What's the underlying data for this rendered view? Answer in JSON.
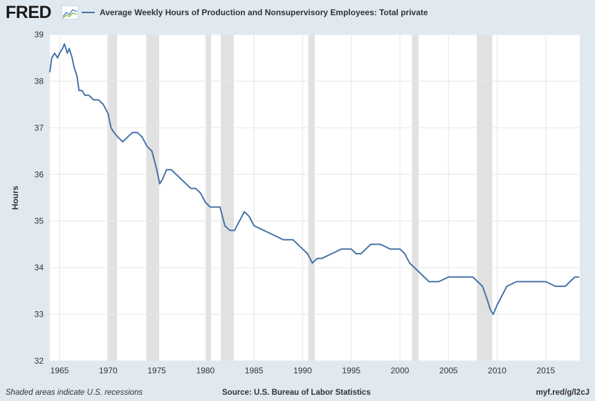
{
  "header": {
    "logo_text": "FRED",
    "logo_icon": "fred-chart-icon",
    "legend_label": "Average Weekly Hours of Production and Nonsupervisory Employees: Total private"
  },
  "footer": {
    "recession_note": "Shaded areas indicate U.S. recessions",
    "source": "Source: U.S. Bureau of Labor Statistics",
    "link": "myf.red/g/l2cJ"
  },
  "colors": {
    "page_background": "#e1e9f0",
    "plot_background": "#ffffff",
    "series": "#4572a7",
    "recession": "#e1e1e1",
    "grid": "#e6e6e6"
  },
  "chart_data": {
    "type": "line",
    "title": "",
    "xlabel": "",
    "ylabel": "Hours",
    "xlim": [
      1964.0,
      2018.5
    ],
    "ylim": [
      32,
      39
    ],
    "x_ticks": [
      1965,
      1970,
      1975,
      1980,
      1985,
      1990,
      1995,
      2000,
      2005,
      2010,
      2015
    ],
    "y_ticks": [
      32,
      33,
      34,
      35,
      36,
      37,
      38,
      39
    ],
    "grid": true,
    "recessions": [
      [
        1969.92,
        1970.92
      ],
      [
        1973.92,
        1975.25
      ],
      [
        1980.08,
        1980.58
      ],
      [
        1981.58,
        1982.92
      ],
      [
        1990.58,
        1991.25
      ],
      [
        2001.25,
        2001.92
      ],
      [
        2007.92,
        2009.5
      ]
    ],
    "series": [
      {
        "name": "Average Weekly Hours of Production and Nonsupervisory Employees: Total private",
        "x": [
          1964.0,
          1964.2,
          1964.5,
          1964.8,
          1965.0,
          1965.3,
          1965.5,
          1965.8,
          1966.0,
          1966.3,
          1966.5,
          1966.8,
          1967.0,
          1967.3,
          1967.6,
          1968.0,
          1968.5,
          1969.0,
          1969.5,
          1970.0,
          1970.3,
          1970.6,
          1971.0,
          1971.5,
          1972.0,
          1972.5,
          1973.0,
          1973.5,
          1974.0,
          1974.5,
          1975.0,
          1975.3,
          1975.6,
          1976.0,
          1976.5,
          1977.0,
          1977.5,
          1978.0,
          1978.5,
          1979.0,
          1979.5,
          1980.0,
          1980.5,
          1981.0,
          1981.5,
          1982.0,
          1982.5,
          1983.0,
          1983.5,
          1984.0,
          1984.5,
          1985.0,
          1986.0,
          1987.0,
          1988.0,
          1989.0,
          1989.5,
          1990.0,
          1990.5,
          1991.0,
          1991.5,
          1992.0,
          1993.0,
          1994.0,
          1995.0,
          1995.5,
          1996.0,
          1996.5,
          1997.0,
          1998.0,
          1999.0,
          2000.0,
          2000.5,
          2001.0,
          2001.5,
          2002.0,
          2002.5,
          2003.0,
          2003.5,
          2004.0,
          2005.0,
          2006.0,
          2007.0,
          2007.5,
          2008.0,
          2008.5,
          2009.0,
          2009.3,
          2009.6,
          2010.0,
          2010.5,
          2011.0,
          2012.0,
          2013.0,
          2014.0,
          2015.0,
          2016.0,
          2017.0,
          2017.5,
          2018.0,
          2018.4
        ],
        "values": [
          38.2,
          38.5,
          38.6,
          38.5,
          38.6,
          38.7,
          38.8,
          38.6,
          38.7,
          38.5,
          38.3,
          38.1,
          37.8,
          37.8,
          37.7,
          37.7,
          37.6,
          37.6,
          37.5,
          37.3,
          37.0,
          36.9,
          36.8,
          36.7,
          36.8,
          36.9,
          36.9,
          36.8,
          36.6,
          36.5,
          36.1,
          35.8,
          35.9,
          36.1,
          36.1,
          36.0,
          35.9,
          35.8,
          35.7,
          35.7,
          35.6,
          35.4,
          35.3,
          35.3,
          35.3,
          34.9,
          34.8,
          34.8,
          35.0,
          35.2,
          35.1,
          34.9,
          34.8,
          34.7,
          34.6,
          34.6,
          34.5,
          34.4,
          34.3,
          34.1,
          34.2,
          34.2,
          34.3,
          34.4,
          34.4,
          34.3,
          34.3,
          34.4,
          34.5,
          34.5,
          34.4,
          34.4,
          34.3,
          34.1,
          34.0,
          33.9,
          33.8,
          33.7,
          33.7,
          33.7,
          33.8,
          33.8,
          33.8,
          33.8,
          33.7,
          33.6,
          33.3,
          33.1,
          33.0,
          33.2,
          33.4,
          33.6,
          33.7,
          33.7,
          33.7,
          33.7,
          33.6,
          33.6,
          33.7,
          33.8,
          33.8
        ]
      }
    ]
  }
}
